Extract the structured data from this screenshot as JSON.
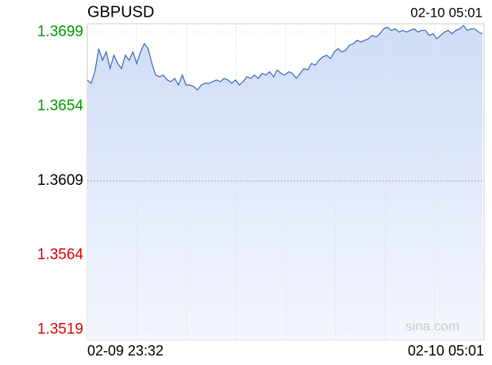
{
  "chart_data": {
    "type": "area",
    "title": "GBPUSD",
    "time": "02-10 05:01",
    "x_labels": [
      "02-09 23:32",
      "02-10 05:01"
    ],
    "watermark": "sina.com",
    "ylim": [
      1.3513,
      1.3704
    ],
    "yticks": [
      1.3519,
      1.3564,
      1.3609,
      1.3654,
      1.3699
    ],
    "grid": true,
    "up_color": "#009900",
    "down_color": "#dd0000",
    "flat_color": "#000000",
    "series": [
      {
        "color": "#3a66b8",
        "values": [
          1.367,
          1.3668,
          1.3675,
          1.3689,
          1.3682,
          1.3687,
          1.3677,
          1.3685,
          1.368,
          1.3677,
          1.3685,
          1.3682,
          1.3687,
          1.368,
          1.3687,
          1.3692,
          1.3689,
          1.368,
          1.3673,
          1.3672,
          1.3673,
          1.367,
          1.3669,
          1.3671,
          1.3667,
          1.3673,
          1.3667,
          1.3667,
          1.3666,
          1.3664,
          1.3667,
          1.3668,
          1.3668,
          1.3669,
          1.367,
          1.3669,
          1.3671,
          1.367,
          1.3668,
          1.367,
          1.3667,
          1.3669,
          1.3672,
          1.3671,
          1.3673,
          1.3671,
          1.3674,
          1.3673,
          1.3675,
          1.3672,
          1.3676,
          1.3674,
          1.3673,
          1.3675,
          1.3674,
          1.3671,
          1.3674,
          1.3677,
          1.3676,
          1.368,
          1.3679,
          1.3682,
          1.3684,
          1.3685,
          1.3683,
          1.3687,
          1.3689,
          1.3687,
          1.3688,
          1.3691,
          1.3692,
          1.3694,
          1.3693,
          1.3694,
          1.3695,
          1.3697,
          1.3696,
          1.3698,
          1.3701,
          1.3702,
          1.37,
          1.3701,
          1.3699,
          1.37,
          1.3699,
          1.37,
          1.3701,
          1.3699,
          1.37,
          1.37,
          1.3697,
          1.3698,
          1.3695,
          1.3697,
          1.3699,
          1.37,
          1.3698,
          1.37,
          1.3701,
          1.3703,
          1.37,
          1.3701,
          1.3701,
          1.3699,
          1.3698
        ]
      }
    ]
  }
}
